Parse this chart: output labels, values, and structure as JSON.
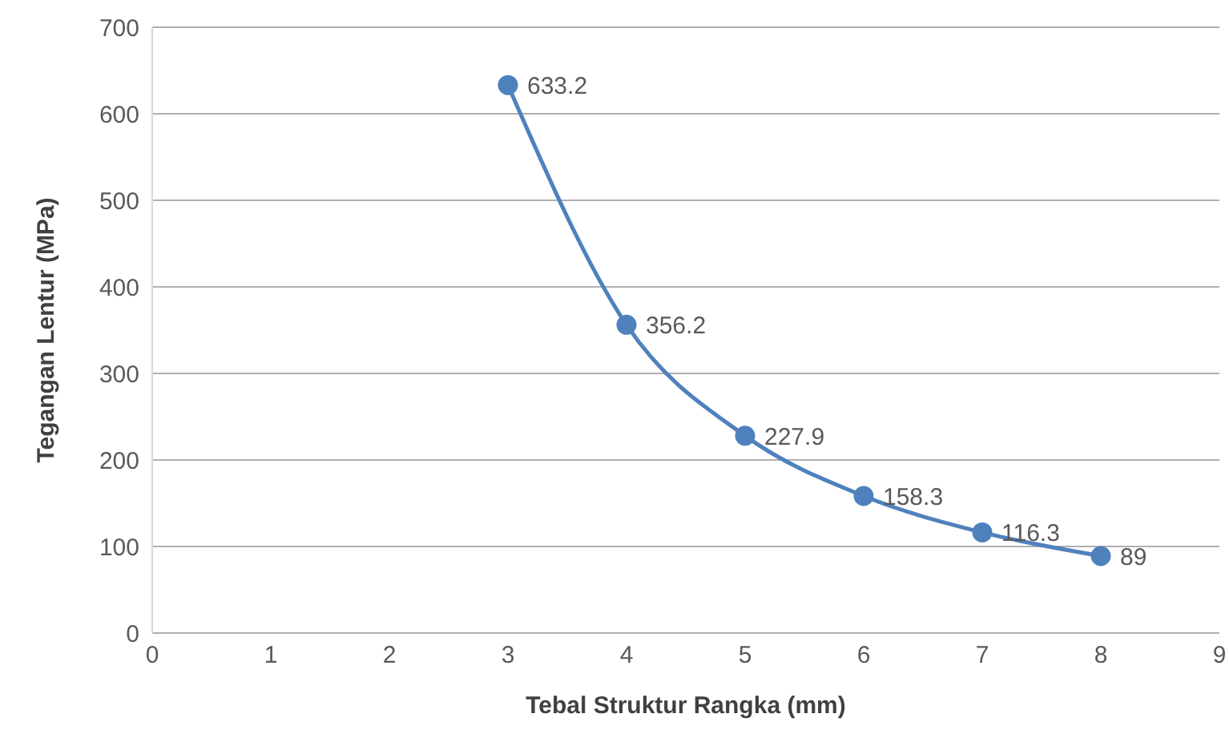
{
  "chart_data": {
    "type": "line",
    "xlabel": "Tebal Struktur Rangka (mm)",
    "ylabel": "Tegangan Lentur (MPa)",
    "x": [
      3,
      4,
      5,
      6,
      7,
      8
    ],
    "series": [
      {
        "color": "#4f81bd",
        "values": [
          633.2,
          356.2,
          227.9,
          158.3,
          116.3,
          89
        ]
      }
    ],
    "xlim": [
      0,
      9
    ],
    "xticks": [
      0,
      1,
      2,
      3,
      4,
      5,
      6,
      7,
      8,
      9
    ],
    "ylim": [
      0,
      700
    ],
    "yticks": [
      0,
      100,
      200,
      300,
      400,
      500,
      600,
      700
    ],
    "grid": "y",
    "marker": "circle",
    "line_style": "solid",
    "data_labels": true,
    "legend": false
  }
}
